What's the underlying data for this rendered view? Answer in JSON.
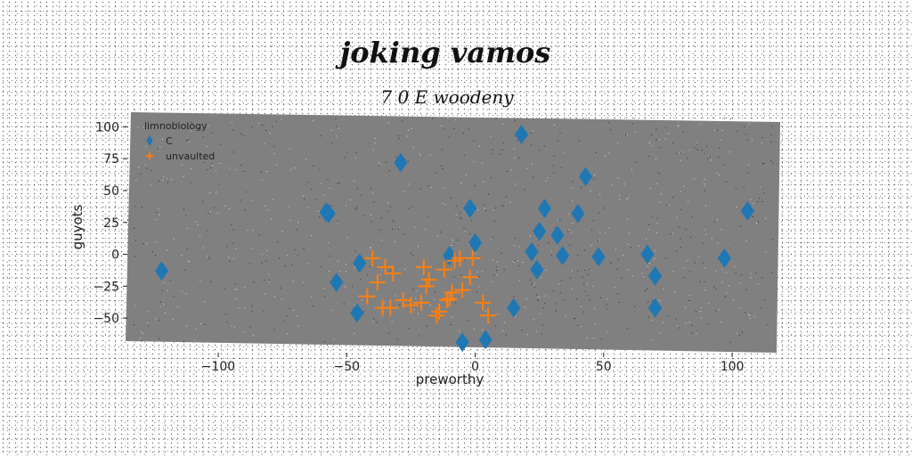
{
  "chart_data": {
    "type": "scatter",
    "title": "joking vamos",
    "subtitle": "7 0 E woodeny",
    "xlabel": "preworthy",
    "ylabel": "guyots",
    "xlim": [
      -135,
      118
    ],
    "ylim": [
      -73,
      108
    ],
    "xticks": [
      -100,
      -50,
      0,
      50,
      100
    ],
    "yticks": [
      -50,
      -25,
      0,
      25,
      50,
      75,
      100
    ],
    "xtick_labels": [
      "−100",
      "−50",
      "0",
      "50",
      "100"
    ],
    "ytick_labels": [
      "−50",
      "−25",
      "0",
      "25",
      "50",
      "75",
      "100"
    ],
    "legend": {
      "title": "limnobiology",
      "location": "top-left"
    },
    "series": [
      {
        "name": "C",
        "marker": "diamond",
        "color": "#1f77b4",
        "x": [
          18,
          43,
          -29,
          40,
          27,
          -58,
          -57,
          -2,
          106,
          25,
          32,
          0,
          22,
          34,
          48,
          67,
          -122,
          -10,
          -45,
          24,
          70,
          -54,
          97,
          15,
          70,
          -46,
          4,
          -5
        ],
        "y": [
          94,
          61,
          72,
          32,
          36,
          33,
          32,
          36,
          34,
          18,
          15,
          9,
          2,
          -1,
          -2,
          0,
          -13,
          -1,
          -7,
          -12,
          -17,
          -22,
          -3,
          -42,
          -42,
          -46,
          -67,
          -69
        ]
      },
      {
        "name": "unvaulted",
        "marker": "plus",
        "color": "#ff7f0e",
        "x": [
          -40,
          -35,
          -32,
          -38,
          -42,
          -20,
          -18,
          -12,
          -8,
          -6,
          -1,
          -2,
          -10,
          -14,
          -21,
          -25,
          -28,
          -33,
          -36,
          -15,
          -9,
          -5,
          3,
          5,
          -11,
          -19
        ],
        "y": [
          -3,
          -10,
          -15,
          -22,
          -33,
          -10,
          -20,
          -12,
          -5,
          -3,
          -3,
          -18,
          -35,
          -45,
          -38,
          -40,
          -36,
          -42,
          -42,
          -48,
          -30,
          -28,
          -38,
          -48,
          -36,
          -25
        ]
      }
    ]
  }
}
